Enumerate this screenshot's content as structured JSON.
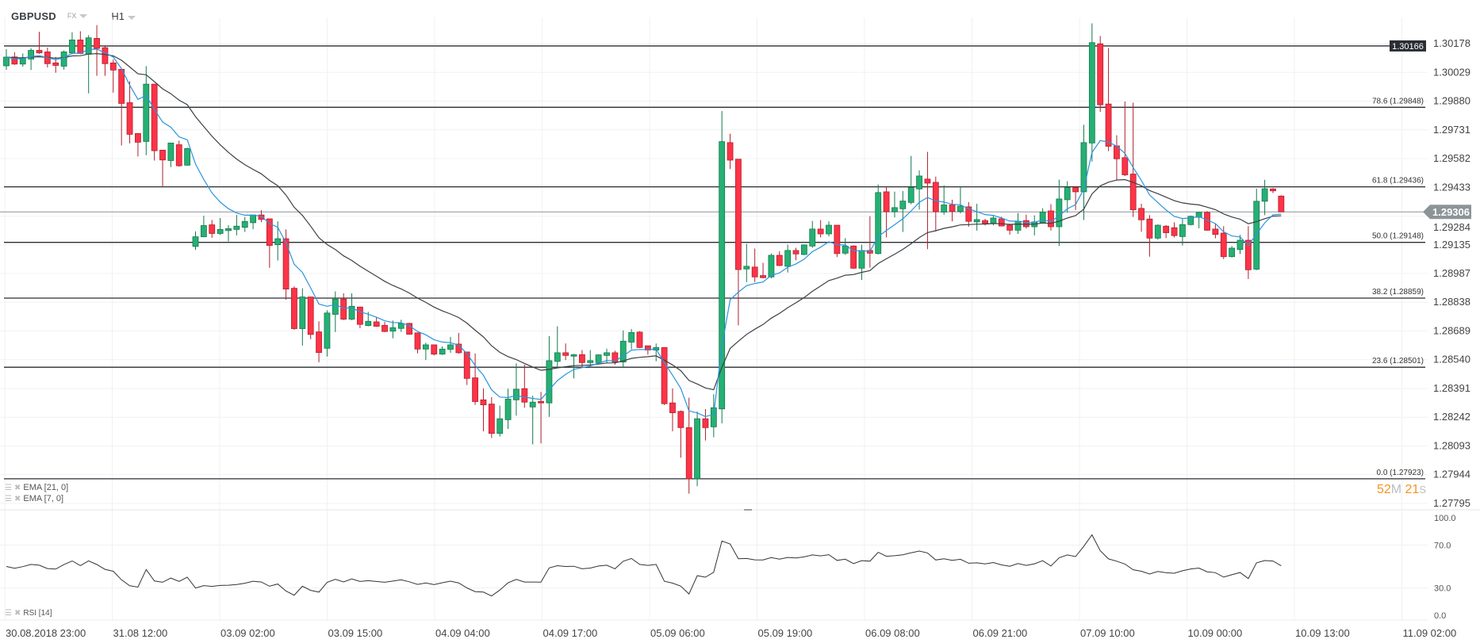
{
  "header": {
    "symbol": "GBPUSD",
    "market": "FX",
    "timeframe": "H1"
  },
  "chart_data": {
    "type": "candlestick",
    "x_labels": [
      "30.08.2018  23:00",
      "31.08  12:00",
      "03.09  02:00",
      "03.09  15:00",
      "04.09  04:00",
      "04.09  17:00",
      "05.09  06:00",
      "05.09  19:00",
      "06.09  08:00",
      "06.09  21:00",
      "07.09  10:00",
      "10.09  00:00",
      "10.09  13:00",
      "11.09  02:00"
    ],
    "y_ticks": [
      "1.30178",
      "1.30029",
      "1.29880",
      "1.29731",
      "1.29582",
      "1.29433",
      "1.29284",
      "1.29135",
      "1.28987",
      "1.28838",
      "1.28689",
      "1.28540",
      "1.28391",
      "1.28242",
      "1.28093",
      "1.27944",
      "1.27795"
    ],
    "ylim": [
      1.27795,
      1.30178
    ],
    "candles": [
      [
        1.30063,
        1.30149,
        1.30042,
        1.30108
      ],
      [
        1.30109,
        1.30133,
        1.30068,
        1.30072
      ],
      [
        1.30072,
        1.30127,
        1.30058,
        1.30102
      ],
      [
        1.30098,
        1.30154,
        1.30041,
        1.30143
      ],
      [
        1.30143,
        1.30239,
        1.30125,
        1.3013
      ],
      [
        1.30135,
        1.30157,
        1.30054,
        1.30074
      ],
      [
        1.30078,
        1.30109,
        1.30027,
        1.30065
      ],
      [
        1.30061,
        1.30143,
        1.30043,
        1.30135
      ],
      [
        1.3013,
        1.30237,
        1.30123,
        1.30197
      ],
      [
        1.30197,
        1.30242,
        1.30123,
        1.30127
      ],
      [
        1.30123,
        1.30222,
        1.2992,
        1.30208
      ],
      [
        1.30205,
        1.30274,
        1.30011,
        1.30153
      ],
      [
        1.30157,
        1.30164,
        1.30011,
        1.30074
      ],
      [
        1.30078,
        1.30095,
        1.29924,
        1.30041
      ],
      [
        1.30045,
        1.30045,
        1.2965,
        1.29868
      ],
      [
        1.29872,
        1.29983,
        1.29661,
        1.29708
      ],
      [
        1.29712,
        1.29712,
        1.29593,
        1.29667
      ],
      [
        1.29671,
        1.30061,
        1.296,
        1.29968
      ],
      [
        1.29968,
        1.29968,
        1.29572,
        1.29623
      ],
      [
        1.29626,
        1.29626,
        1.29435,
        1.29575
      ],
      [
        1.29572,
        1.29663,
        1.29538,
        1.29663
      ],
      [
        1.29654,
        1.29675,
        1.2954,
        1.29545
      ],
      [
        1.29548,
        1.29639,
        1.29545,
        1.29634
      ],
      [
        1.29127,
        1.29205,
        1.29109,
        1.29177
      ],
      [
        1.29177,
        1.29286,
        1.29175,
        1.29235
      ],
      [
        1.29239,
        1.29264,
        1.29172,
        1.29194
      ],
      [
        1.29194,
        1.29274,
        1.29186,
        1.29215
      ],
      [
        1.29209,
        1.29237,
        1.29153,
        1.29219
      ],
      [
        1.29215,
        1.2929,
        1.29184,
        1.29232
      ],
      [
        1.29226,
        1.2928,
        1.29202,
        1.29256
      ],
      [
        1.2925,
        1.2929,
        1.29216,
        1.2929
      ],
      [
        1.2929,
        1.29315,
        1.29253,
        1.29267
      ],
      [
        1.2927,
        1.2927,
        1.29016,
        1.29132
      ],
      [
        1.29136,
        1.29257,
        1.29054,
        1.29167
      ],
      [
        1.29167,
        1.29215,
        1.28851,
        1.28906
      ],
      [
        1.2891,
        1.2892,
        1.28695,
        1.28701
      ],
      [
        1.28701,
        1.2891,
        1.28613,
        1.28865
      ],
      [
        1.28865,
        1.28865,
        1.28646,
        1.28671
      ],
      [
        1.28684,
        1.28739,
        1.28527,
        1.28577
      ],
      [
        1.28599,
        1.28796,
        1.28556,
        1.28782
      ],
      [
        1.28775,
        1.28894,
        1.28683,
        1.28854
      ],
      [
        1.28854,
        1.28884,
        1.28745,
        1.2875
      ],
      [
        1.2875,
        1.28884,
        1.28745,
        1.28817
      ],
      [
        1.28813,
        1.28813,
        1.28703,
        1.28723
      ],
      [
        1.28717,
        1.28788,
        1.28713,
        1.28739
      ],
      [
        1.28736,
        1.28761,
        1.2871,
        1.28713
      ],
      [
        1.28718,
        1.28736,
        1.28683,
        1.28686
      ],
      [
        1.28688,
        1.28743,
        1.28651,
        1.28706
      ],
      [
        1.28702,
        1.28747,
        1.28684,
        1.28728
      ],
      [
        1.28728,
        1.28731,
        1.2867,
        1.28672
      ],
      [
        1.28679,
        1.28679,
        1.28573,
        1.28595
      ],
      [
        1.28595,
        1.28628,
        1.28538,
        1.28617
      ],
      [
        1.28617,
        1.28617,
        1.28562,
        1.28569
      ],
      [
        1.28569,
        1.28609,
        1.28565,
        1.28595
      ],
      [
        1.28594,
        1.28658,
        1.28576,
        1.28617
      ],
      [
        1.28621,
        1.28679,
        1.28571,
        1.28576
      ],
      [
        1.2858,
        1.2858,
        1.28409,
        1.28443
      ],
      [
        1.28446,
        1.28572,
        1.28306,
        1.28323
      ],
      [
        1.28332,
        1.28391,
        1.28169,
        1.28306
      ],
      [
        1.2831,
        1.28346,
        1.28134,
        1.28158
      ],
      [
        1.28158,
        1.28302,
        1.28142,
        1.28234
      ],
      [
        1.28229,
        1.2839,
        1.28181,
        1.28336
      ],
      [
        1.28332,
        1.28521,
        1.2825,
        1.28387
      ],
      [
        1.2839,
        1.28514,
        1.28291,
        1.2832
      ],
      [
        1.28295,
        1.28353,
        1.28101,
        1.2832
      ],
      [
        1.28324,
        1.28373,
        1.28106,
        1.28316
      ],
      [
        1.28316,
        1.28662,
        1.28244,
        1.28535
      ],
      [
        1.28531,
        1.28713,
        1.28505,
        1.28576
      ],
      [
        1.28576,
        1.28624,
        1.28538,
        1.28562
      ],
      [
        1.28558,
        1.2857,
        1.28443,
        1.28566
      ],
      [
        1.28566,
        1.2859,
        1.28498,
        1.28525
      ],
      [
        1.28525,
        1.2859,
        1.28508,
        1.28535
      ],
      [
        1.28525,
        1.28568,
        1.2852,
        1.28565
      ],
      [
        1.28562,
        1.28597,
        1.28525,
        1.28576
      ],
      [
        1.28576,
        1.28587,
        1.28514,
        1.28528
      ],
      [
        1.28528,
        1.28692,
        1.28497,
        1.28636
      ],
      [
        1.28631,
        1.28699,
        1.28594,
        1.28681
      ],
      [
        1.28683,
        1.28688,
        1.286,
        1.28603
      ],
      [
        1.28612,
        1.28612,
        1.28566,
        1.2859
      ],
      [
        1.2859,
        1.28624,
        1.28532,
        1.28603
      ],
      [
        1.28603,
        1.28603,
        1.28305,
        1.28312
      ],
      [
        1.28316,
        1.28391,
        1.28169,
        1.28265
      ],
      [
        1.28272,
        1.28277,
        1.28032,
        1.28188
      ],
      [
        1.28188,
        1.28343,
        1.27846,
        1.27923
      ],
      [
        1.27923,
        1.28271,
        1.27884,
        1.28234
      ],
      [
        1.28234,
        1.28284,
        1.28121,
        1.28188
      ],
      [
        1.28192,
        1.28361,
        1.28138,
        1.28291
      ],
      [
        1.28285,
        1.29828,
        1.2821,
        1.2967
      ],
      [
        1.29665,
        1.29711,
        1.29528,
        1.29574
      ],
      [
        1.29579,
        1.29579,
        1.28718,
        1.29007
      ],
      [
        1.2901,
        1.2914,
        1.28942,
        1.29024
      ],
      [
        1.2902,
        1.29116,
        1.28942,
        1.28969
      ],
      [
        1.28976,
        1.29042,
        1.28962,
        1.28965
      ],
      [
        1.28969,
        1.2909,
        1.28962,
        1.29081
      ],
      [
        1.29081,
        1.29102,
        1.29025,
        1.29028
      ],
      [
        1.29024,
        1.29136,
        1.28992,
        1.29106
      ],
      [
        1.29106,
        1.2912,
        1.29055,
        1.29088
      ],
      [
        1.29085,
        1.29137,
        1.29082,
        1.29135
      ],
      [
        1.29129,
        1.29259,
        1.2912,
        1.29217
      ],
      [
        1.29217,
        1.29263,
        1.29174,
        1.29192
      ],
      [
        1.29192,
        1.29257,
        1.29179,
        1.29237
      ],
      [
        1.29237,
        1.29237,
        1.29072,
        1.2909
      ],
      [
        1.29092,
        1.2917,
        1.29083,
        1.29129
      ],
      [
        1.29129,
        1.29133,
        1.2901,
        1.29014
      ],
      [
        1.29014,
        1.29136,
        1.28953,
        1.29106
      ],
      [
        1.29106,
        1.29284,
        1.29017,
        1.29092
      ],
      [
        1.2909,
        1.29448,
        1.29085,
        1.29406
      ],
      [
        1.2941,
        1.29437,
        1.29174,
        1.29307
      ],
      [
        1.29307,
        1.29411,
        1.29277,
        1.29328
      ],
      [
        1.29322,
        1.29414,
        1.29202,
        1.29362
      ],
      [
        1.29355,
        1.29596,
        1.29346,
        1.29432
      ],
      [
        1.29425,
        1.29521,
        1.29318,
        1.29492
      ],
      [
        1.29476,
        1.29617,
        1.29113,
        1.29455
      ],
      [
        1.29459,
        1.29489,
        1.29205,
        1.29307
      ],
      [
        1.29305,
        1.29444,
        1.29291,
        1.29342
      ],
      [
        1.29342,
        1.29369,
        1.29257,
        1.29309
      ],
      [
        1.29309,
        1.29438,
        1.29298,
        1.29336
      ],
      [
        1.29332,
        1.29357,
        1.29229,
        1.29257
      ],
      [
        1.29254,
        1.29348,
        1.29209,
        1.29266
      ],
      [
        1.29261,
        1.2927,
        1.29236,
        1.29246
      ],
      [
        1.29246,
        1.29291,
        1.29236,
        1.29274
      ],
      [
        1.2927,
        1.29281,
        1.2923,
        1.29233
      ],
      [
        1.29237,
        1.2924,
        1.29188,
        1.29211
      ],
      [
        1.29211,
        1.293,
        1.29192,
        1.29257
      ],
      [
        1.29261,
        1.29291,
        1.2922,
        1.29229
      ],
      [
        1.29229,
        1.29288,
        1.29184,
        1.29254
      ],
      [
        1.2925,
        1.29325,
        1.29248,
        1.29305
      ],
      [
        1.29311,
        1.29346,
        1.29209,
        1.29229
      ],
      [
        1.29229,
        1.29473,
        1.29129,
        1.29373
      ],
      [
        1.29369,
        1.29465,
        1.29302,
        1.29432
      ],
      [
        1.29432,
        1.29439,
        1.29316,
        1.2941
      ],
      [
        1.2941,
        1.29757,
        1.29264,
        1.29665
      ],
      [
        1.29663,
        1.30283,
        1.29567,
        1.30183
      ],
      [
        1.30177,
        1.30217,
        1.29824,
        1.29861
      ],
      [
        1.29865,
        1.30155,
        1.29621,
        1.29646
      ],
      [
        1.29648,
        1.29703,
        1.29472,
        1.29581
      ],
      [
        1.29587,
        1.29878,
        1.29492,
        1.29498
      ],
      [
        1.29502,
        1.29872,
        1.2928,
        1.29317
      ],
      [
        1.29324,
        1.29348,
        1.29203,
        1.29265
      ],
      [
        1.29269,
        1.29289,
        1.29074,
        1.2917
      ],
      [
        1.2917,
        1.29241,
        1.29162,
        1.29237
      ],
      [
        1.29232,
        1.29237,
        1.2917,
        1.29198
      ],
      [
        1.29224,
        1.29252,
        1.29173,
        1.29183
      ],
      [
        1.29178,
        1.29269,
        1.29132,
        1.2924
      ],
      [
        1.2924,
        1.29287,
        1.29236,
        1.29283
      ],
      [
        1.29278,
        1.29306,
        1.29221,
        1.29303
      ],
      [
        1.29303,
        1.2931,
        1.29208,
        1.29211
      ],
      [
        1.29217,
        1.29244,
        1.29169,
        1.29189
      ],
      [
        1.29196,
        1.29232,
        1.29061,
        1.29074
      ],
      [
        1.29074,
        1.29129,
        1.2907,
        1.29118
      ],
      [
        1.29111,
        1.29187,
        1.29087,
        1.29159
      ],
      [
        1.29159,
        1.29232,
        1.28958,
        1.29006
      ],
      [
        1.29009,
        1.29426,
        1.29004,
        1.29361
      ],
      [
        1.29361,
        1.29472,
        1.29289,
        1.29426
      ],
      [
        1.29425,
        1.29429,
        1.29403,
        1.29415
      ],
      [
        1.29388,
        1.29392,
        1.29306,
        1.29306
      ]
    ],
    "level_top": {
      "label": "1.30166",
      "price": 1.30166
    },
    "fib_levels": [
      {
        "label": "78.6 (1.29848)",
        "price": 1.29848
      },
      {
        "label": "61.8 (1.29436)",
        "price": 1.29436
      },
      {
        "label": "50.0 (1.29148)",
        "price": 1.29148
      },
      {
        "label": "38.2 (1.28859)",
        "price": 1.28859
      },
      {
        "label": "23.6 (1.28501)",
        "price": 1.28501
      },
      {
        "label": "0.0 (1.27923)",
        "price": 1.27923
      }
    ],
    "current_price": {
      "label": "1.29306",
      "price": 1.29306
    },
    "countdown": {
      "minutes": "52",
      "m_unit": "M",
      "seconds": "21",
      "s_unit": "S"
    },
    "indicators": [
      {
        "label": "EMA [21, 0]",
        "period": 21,
        "color": "#3c4043"
      },
      {
        "label": "EMA [7, 0]",
        "period": 7,
        "color": "#2b95dc"
      }
    ],
    "rsi": {
      "label": "RSI [14]",
      "period": 14,
      "ylim": [
        0,
        100
      ],
      "ticks": [
        "100.0",
        "70.0",
        "30.0",
        "0.0"
      ],
      "color": "#333333"
    },
    "grid": true,
    "colors": {
      "up": "#26b074",
      "up_border": "#147a4c",
      "down": "#ff3347",
      "down_border": "#b0202e",
      "level_line": "#2a2e33",
      "price_tag": "#8c9498",
      "level_tag": "#2a2e33",
      "countdown": "#f7931e"
    }
  }
}
